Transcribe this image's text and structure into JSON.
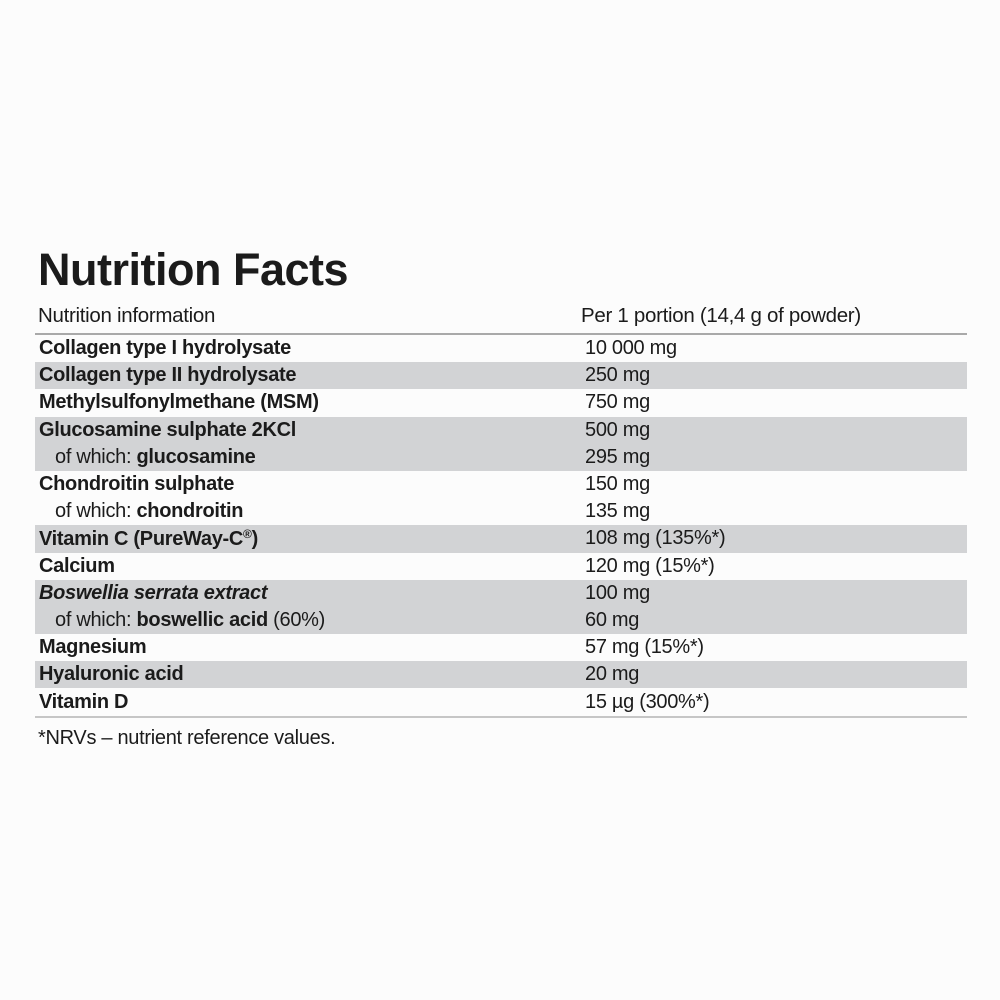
{
  "label": {
    "title": "Nutrition Facts",
    "header": {
      "left": "Nutrition information",
      "right": "Per 1 portion (14,4 g of powder)"
    },
    "footnote": "*NRVs – nutrient reference values.",
    "colors": {
      "stripe": "#d2d3d5",
      "rule_top": "#a9a9a9",
      "rule_bottom": "#c6c6c6",
      "text": "#1b1b1b"
    },
    "rows": [
      {
        "parts": [
          {
            "t": "Collagen type I hydrolysate",
            "b": true
          }
        ],
        "value": "10 000 mg",
        "shade": false,
        "sub": false
      },
      {
        "parts": [
          {
            "t": "Collagen type II hydrolysate",
            "b": true
          }
        ],
        "value": "250 mg",
        "shade": true,
        "sub": false
      },
      {
        "parts": [
          {
            "t": "Methylsulfonylmethane (MSM)",
            "b": true
          }
        ],
        "value": "750 mg",
        "shade": false,
        "sub": false
      },
      {
        "parts": [
          {
            "t": "Glucosamine sulphate 2KCl",
            "b": true
          }
        ],
        "value": "500 mg",
        "shade": true,
        "sub": false
      },
      {
        "parts": [
          {
            "t": "of which: "
          },
          {
            "t": "glucosamine",
            "b": true
          }
        ],
        "value": "295 mg",
        "shade": true,
        "sub": true
      },
      {
        "parts": [
          {
            "t": "Chondroitin sulphate",
            "b": true
          }
        ],
        "value": "150 mg",
        "shade": false,
        "sub": false
      },
      {
        "parts": [
          {
            "t": "of which: "
          },
          {
            "t": "chondroitin",
            "b": true
          }
        ],
        "value": "135 mg",
        "shade": false,
        "sub": true
      },
      {
        "parts": [
          {
            "t": "Vitamin C (PureWay-C",
            "b": true
          },
          {
            "t": "®",
            "b": true,
            "sup": true
          },
          {
            "t": ")",
            "b": true
          }
        ],
        "value": "108 mg (135%*)",
        "shade": true,
        "sub": false
      },
      {
        "parts": [
          {
            "t": "Calcium",
            "b": true
          }
        ],
        "value": "120 mg (15%*)",
        "shade": false,
        "sub": false
      },
      {
        "parts": [
          {
            "t": "Boswellia serrata extract",
            "b": true,
            "i": true
          }
        ],
        "value": "100 mg",
        "shade": true,
        "sub": false
      },
      {
        "parts": [
          {
            "t": "of which: "
          },
          {
            "t": "boswellic acid",
            "b": true
          },
          {
            "t": " (60%)"
          }
        ],
        "value": "60 mg",
        "shade": true,
        "sub": true
      },
      {
        "parts": [
          {
            "t": "Magnesium",
            "b": true
          }
        ],
        "value": "57 mg (15%*)",
        "shade": false,
        "sub": false
      },
      {
        "parts": [
          {
            "t": "Hyaluronic acid",
            "b": true
          }
        ],
        "value": "20 mg",
        "shade": true,
        "sub": false
      },
      {
        "parts": [
          {
            "t": "Vitamin D",
            "b": true
          }
        ],
        "value": "15 µg (300%*)",
        "shade": false,
        "sub": false
      }
    ]
  }
}
